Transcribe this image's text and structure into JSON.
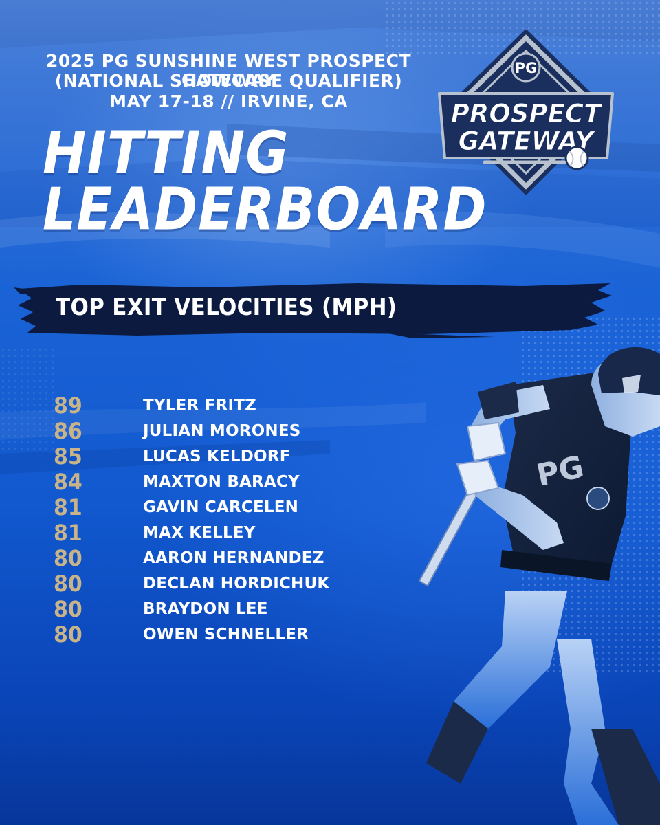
{
  "header": {
    "line1": "2025 PG SUNSHINE WEST PROSPECT GATEWAY",
    "line2": "(NATIONAL SHOWCASE QUALIFIER)",
    "line3": "MAY 17-18  //  IRVINE, CA"
  },
  "title": {
    "line1": "HITTING",
    "line2": "LEADERBOARD"
  },
  "logo": {
    "monogram": "PG",
    "word1": "PROSPECT",
    "word2": "GATEWAY"
  },
  "section": {
    "title": "TOP EXIT VELOCITIES (MPH)"
  },
  "leaderboard": [
    {
      "value": "89",
      "name": "TYLER FRITZ"
    },
    {
      "value": "86",
      "name": "JULIAN MORONES"
    },
    {
      "value": "85",
      "name": "LUCAS KELDORF"
    },
    {
      "value": "84",
      "name": "MAXTON BARACY"
    },
    {
      "value": "81",
      "name": "GAVIN CARCELEN"
    },
    {
      "value": "81",
      "name": "MAX KELLEY"
    },
    {
      "value": "80",
      "name": "AARON HERNANDEZ"
    },
    {
      "value": "80",
      "name": "DECLAN HORDICHUK"
    },
    {
      "value": "80",
      "name": "BRAYDON LEE"
    },
    {
      "value": "80",
      "name": "OWEN SCHNELLER"
    }
  ],
  "colors": {
    "background": "#1a5fd4",
    "value_gold": "#c9b48a",
    "banner_navy": "#0b1a3e",
    "text_white": "#ffffff",
    "logo_navy": "#1a2f5e",
    "logo_silver": "#b8c2cf"
  }
}
